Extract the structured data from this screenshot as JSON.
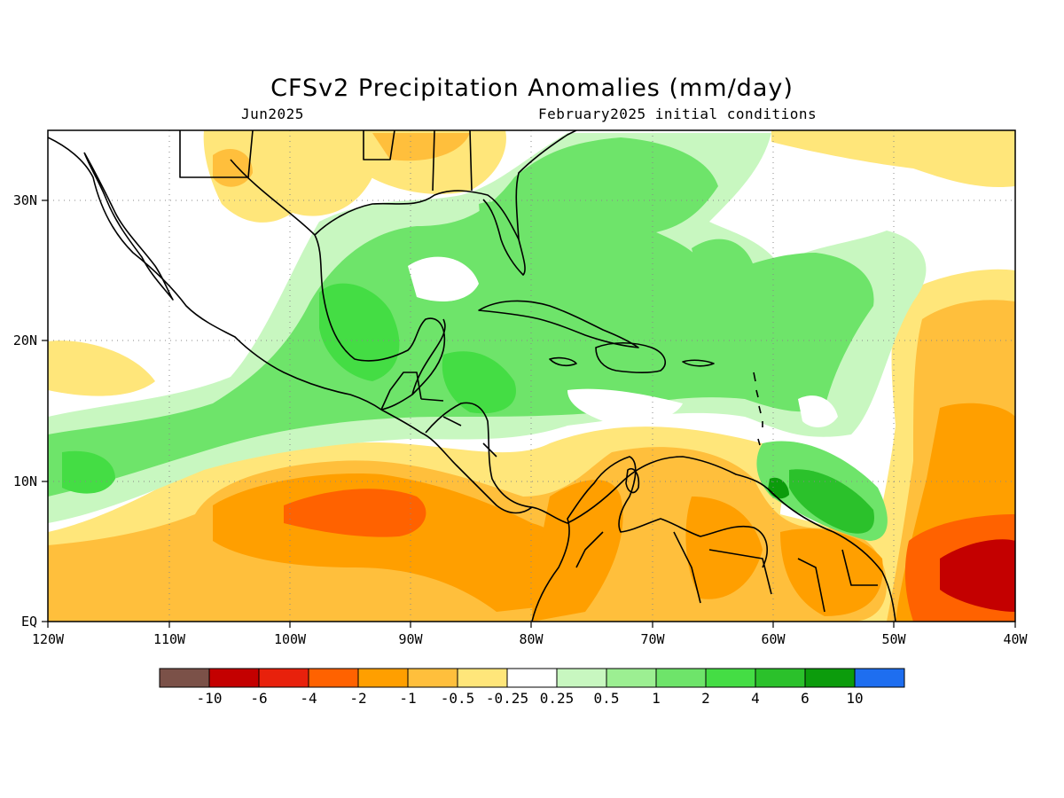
{
  "title": "CFSv2 Precipitation Anomalies (mm/day)",
  "subtitle_left": "Jun2025",
  "subtitle_right": "February2025 initial conditions",
  "axes": {
    "lon_ticks": [
      "120W",
      "110W",
      "100W",
      "90W",
      "80W",
      "70W",
      "60W",
      "50W",
      "40W"
    ],
    "lat_ticks": [
      "30N",
      "20N",
      "10N",
      "EQ"
    ]
  },
  "colorbar": {
    "colors": [
      "#7b5148",
      "#c40000",
      "#e8210c",
      "#ff6200",
      "#ff9f00",
      "#ffbf3c",
      "#ffe67a",
      "#ffffff",
      "#c8f7c0",
      "#9cef92",
      "#6ee46a",
      "#44dd44",
      "#2bc12b",
      "#0c9c0c",
      "#1e6ef0"
    ],
    "labels": [
      "-10",
      "-6",
      "-4",
      "-2",
      "-1",
      "-0.5",
      "-0.25",
      "0.25",
      "0.5",
      "1",
      "2",
      "4",
      "6",
      "10"
    ]
  },
  "legend_colors": {
    "dry_strong": "#c40000",
    "dry_moderate": "#ff9f00",
    "dry_light": "#ffe67a",
    "neutral": "#ffffff",
    "wet_light": "#c8f7c0",
    "wet_moderate": "#6ee46a",
    "wet_strong": "#0c9c0c"
  }
}
